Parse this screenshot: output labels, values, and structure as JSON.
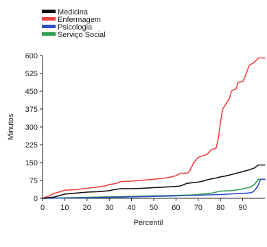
{
  "chart_data": {
    "type": "line",
    "title": "",
    "xlabel": "Percentil",
    "ylabel": "Minutos",
    "xlim": [
      0,
      100
    ],
    "ylim": [
      0,
      600
    ],
    "xticks": [
      0,
      10,
      20,
      30,
      40,
      50,
      60,
      70,
      80,
      90
    ],
    "yticks": [
      0,
      75,
      150,
      225,
      300,
      375,
      450,
      525,
      600
    ],
    "grid": false,
    "legend_position": "top-left",
    "series": [
      {
        "name": "Medicina",
        "color": "#111111",
        "x": [
          0,
          5,
          8,
          10,
          15,
          20,
          25,
          28,
          30,
          32,
          35,
          40,
          45,
          50,
          55,
          60,
          62,
          65,
          68,
          70,
          72,
          75,
          78,
          80,
          83,
          85,
          88,
          90,
          93,
          95,
          97,
          100
        ],
        "y": [
          0,
          5,
          12,
          18,
          22,
          26,
          28,
          30,
          32,
          36,
          40,
          40,
          42,
          45,
          47,
          50,
          52,
          63,
          66,
          68,
          72,
          80,
          85,
          90,
          95,
          100,
          107,
          112,
          120,
          126,
          140,
          140
        ]
      },
      {
        "name": "Enfermagem",
        "color": "#ef3f3f",
        "x": [
          0,
          3,
          5,
          8,
          10,
          15,
          20,
          25,
          28,
          30,
          33,
          35,
          40,
          45,
          50,
          55,
          58,
          60,
          62,
          65,
          66,
          68,
          70,
          72,
          74,
          76,
          78,
          79,
          80,
          81,
          82,
          84,
          85,
          87,
          88,
          90,
          91,
          93,
          95,
          97,
          100
        ],
        "y": [
          0,
          10,
          20,
          28,
          34,
          36,
          42,
          48,
          52,
          58,
          62,
          70,
          72,
          76,
          80,
          85,
          90,
          95,
          105,
          106,
          112,
          150,
          172,
          178,
          185,
          205,
          210,
          250,
          320,
          375,
          390,
          420,
          452,
          460,
          488,
          490,
          510,
          560,
          570,
          590,
          590
        ]
      },
      {
        "name": "Psicologia",
        "color": "#2a4fc0",
        "x": [
          0,
          20,
          30,
          40,
          50,
          60,
          70,
          80,
          88,
          92,
          94,
          95,
          96,
          97,
          98,
          100
        ],
        "y": [
          0,
          2,
          4,
          6,
          8,
          10,
          13,
          16,
          20,
          22,
          24,
          30,
          40,
          55,
          80,
          80
        ]
      },
      {
        "name": "Serviço Social",
        "color": "#2e9e4e",
        "x": [
          0,
          10,
          20,
          30,
          40,
          50,
          60,
          68,
          72,
          75,
          78,
          80,
          85,
          88,
          90,
          93,
          95,
          97,
          100
        ],
        "y": [
          0,
          2,
          4,
          6,
          8,
          10,
          12,
          14,
          18,
          20,
          26,
          30,
          32,
          36,
          40,
          46,
          55,
          80,
          80
        ]
      }
    ]
  }
}
